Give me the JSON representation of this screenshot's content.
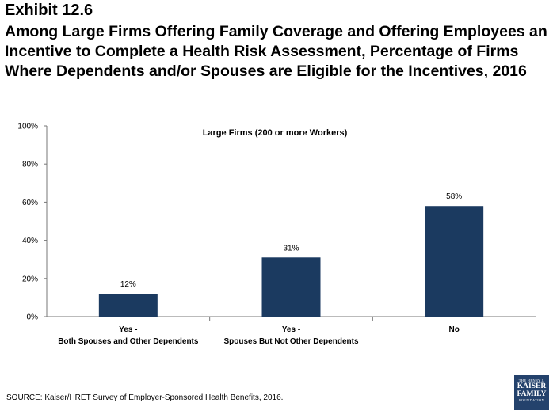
{
  "header": {
    "exhibit": "Exhibit 12.6",
    "title": "Among Large Firms Offering Family Coverage and Offering Employees an Incentive to Complete a Health Risk Assessment, Percentage of Firms Where Dependents and/or Spouses are Eligible for the Incentives, 2016"
  },
  "chart_data": {
    "type": "bar",
    "title": "Large Firms (200 or more Workers)",
    "categories": [
      [
        "Yes -",
        "Both Spouses and Other Dependents"
      ],
      [
        "Yes -",
        "Spouses But Not Other Dependents"
      ],
      [
        "No"
      ]
    ],
    "values": [
      12,
      31,
      58
    ],
    "value_labels": [
      "12%",
      "31%",
      "58%"
    ],
    "yticks": [
      "0%",
      "20%",
      "40%",
      "60%",
      "80%",
      "100%"
    ],
    "ylim": [
      0,
      100
    ],
    "bar_color": "#1b3a60",
    "grid": false
  },
  "footer": {
    "source": "SOURCE: Kaiser/HRET Survey of Employer-Sponsored Health Benefits, 2016.",
    "logo_line1": "THE HENRY J.",
    "logo_line2": "KAISER",
    "logo_line3": "FAMILY",
    "logo_line4": "FOUNDATION"
  }
}
